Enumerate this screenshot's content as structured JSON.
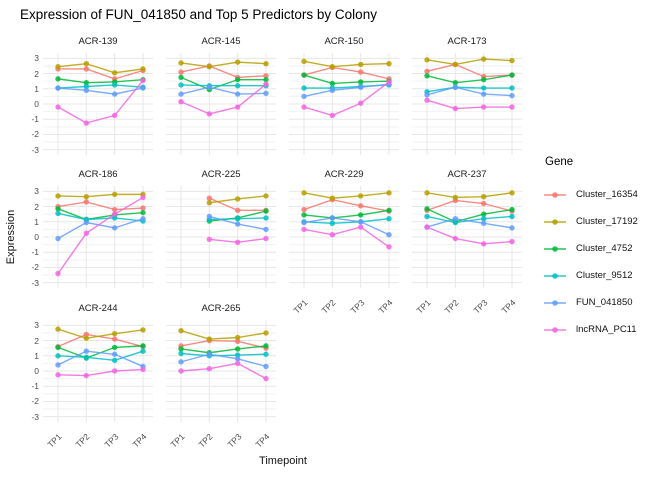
{
  "title": "Expression of FUN_041850 and Top 5 Predictors by Colony",
  "axes": {
    "x_title": "Timepoint",
    "y_title": "Expression",
    "x_ticks": [
      "TP1",
      "TP2",
      "TP3",
      "TP4"
    ],
    "y_ticks": [
      3,
      2,
      1,
      0,
      -1,
      -2,
      -3
    ]
  },
  "legend": {
    "title": "Gene",
    "position": "right",
    "entries": [
      {
        "label": "Cluster_16354",
        "color": "#F8766D"
      },
      {
        "label": "Cluster_17192",
        "color": "#B79F00"
      },
      {
        "label": "Cluster_4752",
        "color": "#00BA38"
      },
      {
        "label": "Cluster_9512",
        "color": "#00BFC4"
      },
      {
        "label": "FUN_041850",
        "color": "#619CFF"
      },
      {
        "label": "lncRNA_PC11",
        "color": "#F564E2"
      }
    ]
  },
  "chart_data": {
    "type": "line",
    "title": "Expression of FUN_041850 and Top 5 Predictors by Colony",
    "xlabel": "Timepoint",
    "ylabel": "Expression",
    "x": [
      "TP1",
      "TP2",
      "TP3",
      "TP4"
    ],
    "ylim": [
      -3.35,
      3.35
    ],
    "major_gridlines": [
      -3,
      -2,
      -1,
      0,
      1,
      2,
      3
    ],
    "minor_gridlines": [
      -2.5,
      -1.5,
      -0.5,
      0.5,
      1.5,
      2.5
    ],
    "grid": true,
    "legend_position": "right",
    "series_order": [
      "Cluster_16354",
      "Cluster_17192",
      "Cluster_4752",
      "Cluster_9512",
      "FUN_041850",
      "lncRNA_PC11"
    ],
    "colors": {
      "Cluster_16354": "#F8766D",
      "Cluster_17192": "#B79F00",
      "Cluster_4752": "#00BA38",
      "Cluster_9512": "#00BFC4",
      "FUN_041850": "#619CFF",
      "lncRNA_PC11": "#F564E2"
    },
    "facets": [
      {
        "name": "ACR-139",
        "values": {
          "Cluster_16354": [
            2.3,
            2.3,
            1.65,
            2.2
          ],
          "Cluster_17192": [
            2.45,
            2.65,
            2.05,
            2.3
          ],
          "Cluster_4752": [
            1.65,
            1.4,
            1.45,
            1.6
          ],
          "Cluster_9512": [
            1.05,
            1.15,
            1.25,
            1.1
          ],
          "FUN_041850": [
            1.05,
            0.9,
            0.65,
            1.05
          ],
          "lncRNA_PC11": [
            -0.2,
            -1.25,
            -0.75,
            1.55
          ]
        }
      },
      {
        "name": "ACR-145",
        "values": {
          "Cluster_16354": [
            2.1,
            2.5,
            1.75,
            1.85
          ],
          "Cluster_17192": [
            2.7,
            2.45,
            2.75,
            2.65
          ],
          "Cluster_4752": [
            1.75,
            0.95,
            1.6,
            1.6
          ],
          "Cluster_9512": [
            1.25,
            1.2,
            1.2,
            1.2
          ],
          "FUN_041850": [
            0.65,
            1.1,
            0.65,
            0.7
          ],
          "lncRNA_PC11": [
            0.15,
            -0.65,
            -0.2,
            1.3
          ]
        }
      },
      {
        "name": "ACR-150",
        "values": {
          "Cluster_16354": [
            1.9,
            2.4,
            2.1,
            1.65
          ],
          "Cluster_17192": [
            2.8,
            2.45,
            2.6,
            2.65
          ],
          "Cluster_4752": [
            1.9,
            1.35,
            1.45,
            1.5
          ],
          "Cluster_9512": [
            1.05,
            1.05,
            1.15,
            1.25
          ],
          "FUN_041850": [
            0.5,
            0.9,
            1.1,
            1.3
          ],
          "lncRNA_PC11": [
            -0.2,
            -0.75,
            0.05,
            1.45
          ]
        }
      },
      {
        "name": "ACR-173",
        "values": {
          "Cluster_16354": [
            2.15,
            2.6,
            1.8,
            1.9
          ],
          "Cluster_17192": [
            2.9,
            2.6,
            2.95,
            2.85
          ],
          "Cluster_4752": [
            1.85,
            1.4,
            1.6,
            1.9
          ],
          "Cluster_9512": [
            0.8,
            1.1,
            1.05,
            1.05
          ],
          "FUN_041850": [
            0.6,
            1.1,
            0.65,
            0.55
          ],
          "lncRNA_PC11": [
            0.25,
            -0.3,
            -0.2,
            -0.2
          ]
        }
      },
      {
        "name": "ACR-186",
        "values": {
          "Cluster_16354": [
            2.0,
            2.3,
            1.8,
            1.9
          ],
          "Cluster_17192": [
            2.7,
            2.65,
            2.8,
            2.8
          ],
          "Cluster_4752": [
            1.85,
            1.15,
            1.45,
            1.6
          ],
          "Cluster_9512": [
            1.55,
            1.15,
            1.25,
            1.05
          ],
          "FUN_041850": [
            -0.1,
            0.95,
            0.6,
            1.2
          ],
          "lncRNA_PC11": [
            -2.4,
            0.25,
            1.5,
            2.6
          ]
        }
      },
      {
        "name": "ACR-225",
        "values": {
          "Cluster_16354": [
            null,
            2.55,
            1.75,
            1.75
          ],
          "Cluster_17192": [
            null,
            2.25,
            2.5,
            2.7
          ],
          "Cluster_4752": [
            null,
            1.05,
            1.25,
            1.7
          ],
          "Cluster_9512": [
            null,
            1.15,
            1.2,
            1.25
          ],
          "FUN_041850": [
            null,
            1.35,
            0.85,
            0.5
          ],
          "lncRNA_PC11": [
            null,
            -0.15,
            -0.35,
            -0.1
          ]
        }
      },
      {
        "name": "ACR-229",
        "values": {
          "Cluster_16354": [
            1.8,
            2.45,
            2.05,
            1.7
          ],
          "Cluster_17192": [
            2.9,
            2.55,
            2.7,
            2.9
          ],
          "Cluster_4752": [
            1.45,
            1.25,
            1.45,
            1.75
          ],
          "Cluster_9512": [
            1.0,
            0.9,
            1.0,
            1.2
          ],
          "FUN_041850": [
            0.95,
            1.25,
            1.0,
            0.15
          ],
          "lncRNA_PC11": [
            0.5,
            0.15,
            0.65,
            -0.65
          ]
        }
      },
      {
        "name": "ACR-237",
        "values": {
          "Cluster_16354": [
            1.75,
            2.4,
            2.2,
            1.7
          ],
          "Cluster_17192": [
            2.9,
            2.6,
            2.65,
            2.9
          ],
          "Cluster_4752": [
            1.85,
            1.0,
            1.5,
            1.8
          ],
          "Cluster_9512": [
            1.35,
            0.95,
            1.2,
            1.35
          ],
          "FUN_041850": [
            0.65,
            1.2,
            0.9,
            0.6
          ],
          "lncRNA_PC11": [
            0.65,
            -0.1,
            -0.45,
            -0.3
          ]
        }
      },
      {
        "name": "ACR-244",
        "values": {
          "Cluster_16354": [
            1.6,
            2.4,
            2.1,
            1.6
          ],
          "Cluster_17192": [
            2.75,
            2.15,
            2.45,
            2.7
          ],
          "Cluster_4752": [
            1.55,
            0.85,
            1.55,
            1.65
          ],
          "Cluster_9512": [
            1.0,
            0.9,
            0.7,
            1.3
          ],
          "FUN_041850": [
            0.4,
            1.3,
            1.1,
            0.3
          ],
          "lncRNA_PC11": [
            -0.25,
            -0.3,
            0.0,
            0.1
          ]
        }
      },
      {
        "name": "ACR-265",
        "values": {
          "Cluster_16354": [
            1.65,
            2.0,
            1.95,
            1.5
          ],
          "Cluster_17192": [
            2.65,
            2.1,
            2.2,
            2.5
          ],
          "Cluster_4752": [
            1.45,
            1.2,
            1.45,
            1.65
          ],
          "Cluster_9512": [
            1.15,
            1.0,
            1.05,
            1.1
          ],
          "FUN_041850": [
            0.6,
            1.1,
            0.8,
            0.3
          ],
          "lncRNA_PC11": [
            0.0,
            0.15,
            0.5,
            -0.5
          ]
        }
      }
    ]
  },
  "style": {
    "major_grid_color": "#e7e7e7",
    "minor_grid_color": "#f2f2f2",
    "tick_text_color": "#4d4d4d",
    "series_opacity": 0.85
  }
}
